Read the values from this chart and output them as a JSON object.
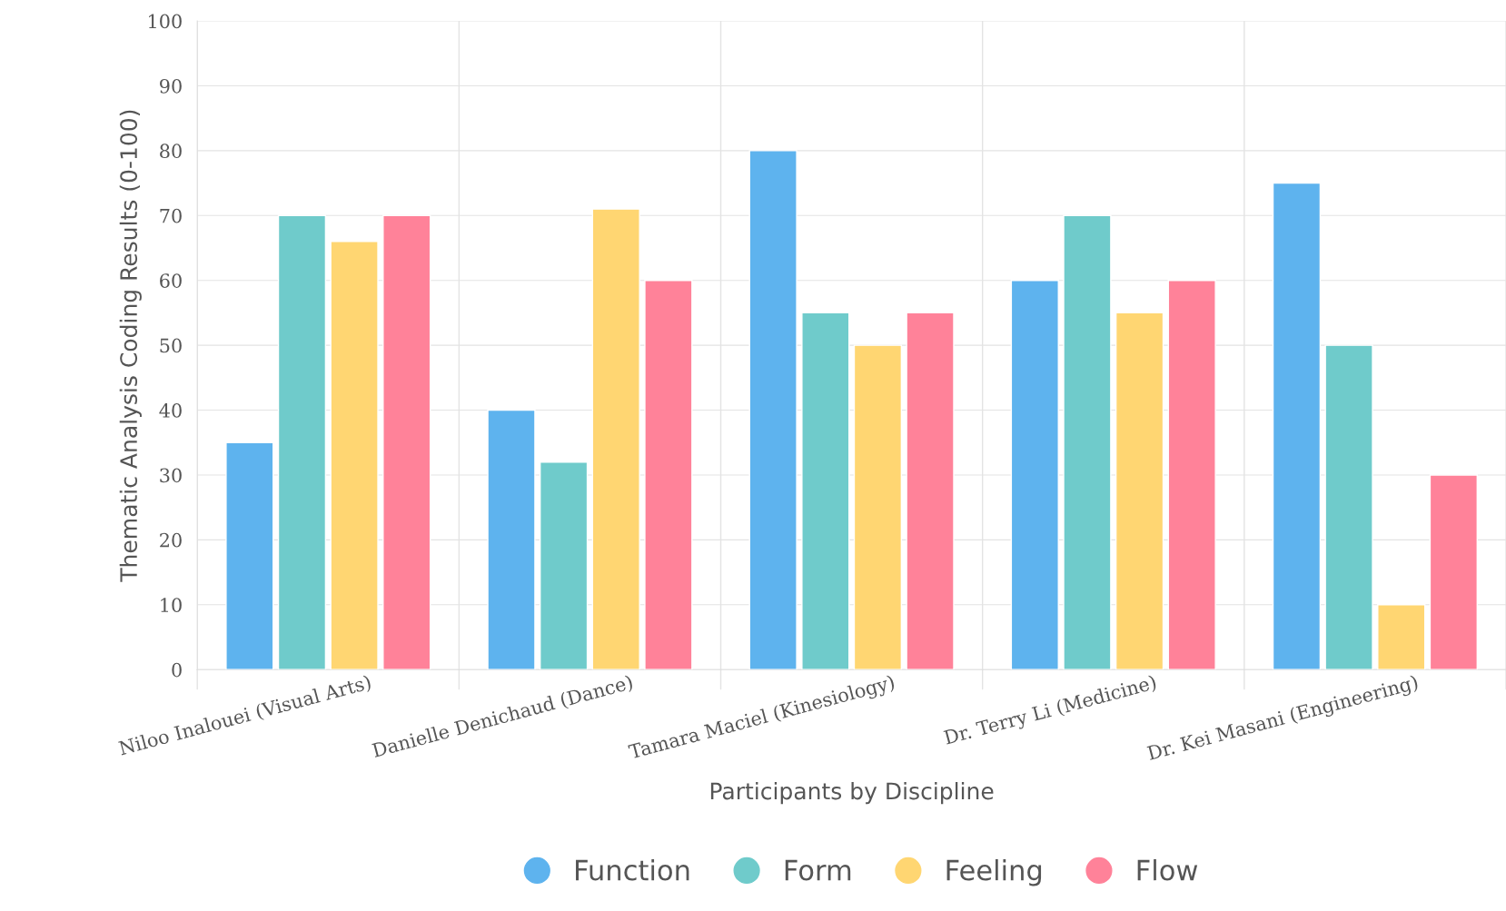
{
  "chart_data": {
    "type": "bar",
    "xlabel": "Participants by Discipline",
    "ylabel": "Thematic Analysis Coding Results (0-100)",
    "categories": [
      "Niloo Inalouei (Visual Arts)",
      "Danielle Denichaud (Dance)",
      "Tamara Maciel (Kinesiology)",
      "Dr. Terry Li (Medicine)",
      "Dr. Kei Masani (Engineering)"
    ],
    "series": [
      {
        "name": "Function",
        "color": "#5eb3ee",
        "values": [
          35,
          40,
          80,
          60,
          75
        ]
      },
      {
        "name": "Form",
        "color": "#6fcbcb",
        "values": [
          70,
          32,
          55,
          70,
          50
        ]
      },
      {
        "name": "Feeling",
        "color": "#ffd672",
        "values": [
          66,
          71,
          50,
          55,
          10
        ]
      },
      {
        "name": "Flow",
        "color": "#ff8299",
        "values": [
          70,
          60,
          55,
          60,
          30
        ]
      }
    ],
    "ylim": [
      0,
      100
    ],
    "yticks": [
      0,
      10,
      20,
      30,
      40,
      50,
      60,
      70,
      80,
      90,
      100
    ],
    "grid": true,
    "legend": "bottom"
  }
}
